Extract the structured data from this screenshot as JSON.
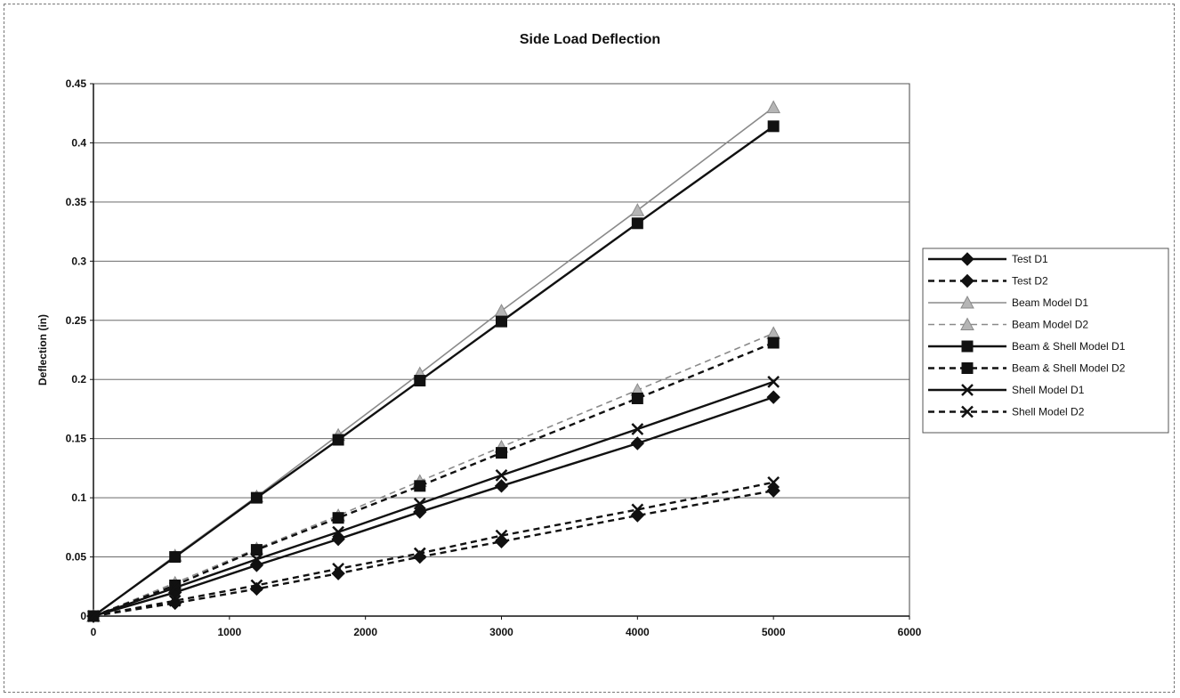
{
  "chart_data": {
    "type": "line",
    "title": "Side Load Deflection",
    "xlabel": "",
    "ylabel": "Deflection (in)",
    "xlim": [
      0,
      6000
    ],
    "ylim": [
      0,
      0.45
    ],
    "x_ticks": [
      "0",
      "1000",
      "2000",
      "3000",
      "4000",
      "5000",
      "6000"
    ],
    "y_ticks": [
      "0",
      "0.05",
      "0.1",
      "0.15",
      "0.2",
      "0.25",
      "0.3",
      "0.35",
      "0.4",
      "0.45"
    ],
    "grid": "horizontal",
    "legend_position": "right",
    "series": [
      {
        "name": "Test D1",
        "marker": "diamond",
        "dash": "solid",
        "color": "#111111",
        "points": [
          [
            0,
            0
          ],
          [
            600,
            0.02
          ],
          [
            1200,
            0.043
          ],
          [
            1800,
            0.065
          ],
          [
            2400,
            0.088
          ],
          [
            3000,
            0.11
          ],
          [
            4000,
            0.146
          ],
          [
            5000,
            0.185
          ]
        ]
      },
      {
        "name": "Test D2",
        "marker": "diamond",
        "dash": "dashed",
        "color": "#111111",
        "points": [
          [
            0,
            0
          ],
          [
            600,
            0.011
          ],
          [
            1200,
            0.023
          ],
          [
            1800,
            0.036
          ],
          [
            2400,
            0.05
          ],
          [
            3000,
            0.063
          ],
          [
            4000,
            0.085
          ],
          [
            5000,
            0.106
          ]
        ]
      },
      {
        "name": "Beam Model D1",
        "marker": "triangle",
        "dash": "solid",
        "color": "#8a8a8a",
        "points": [
          [
            0,
            0
          ],
          [
            600,
            0.051
          ],
          [
            1200,
            0.101
          ],
          [
            1800,
            0.153
          ],
          [
            2400,
            0.205
          ],
          [
            3000,
            0.258
          ],
          [
            4000,
            0.343
          ],
          [
            5000,
            0.43
          ]
        ]
      },
      {
        "name": "Beam Model D2",
        "marker": "triangle",
        "dash": "dashed",
        "color": "#8a8a8a",
        "points": [
          [
            0,
            0
          ],
          [
            600,
            0.028
          ],
          [
            1200,
            0.057
          ],
          [
            1800,
            0.085
          ],
          [
            2400,
            0.114
          ],
          [
            3000,
            0.143
          ],
          [
            4000,
            0.191
          ],
          [
            5000,
            0.239
          ]
        ]
      },
      {
        "name": "Beam & Shell Model D1",
        "marker": "square",
        "dash": "solid",
        "color": "#111111",
        "points": [
          [
            0,
            0
          ],
          [
            600,
            0.05
          ],
          [
            1200,
            0.1
          ],
          [
            1800,
            0.149
          ],
          [
            2400,
            0.199
          ],
          [
            3000,
            0.249
          ],
          [
            4000,
            0.332
          ],
          [
            5000,
            0.414
          ]
        ]
      },
      {
        "name": "Beam & Shell Model D2",
        "marker": "square",
        "dash": "dashed",
        "color": "#111111",
        "points": [
          [
            0,
            0
          ],
          [
            600,
            0.026
          ],
          [
            1200,
            0.056
          ],
          [
            1800,
            0.083
          ],
          [
            2400,
            0.11
          ],
          [
            3000,
            0.138
          ],
          [
            4000,
            0.184
          ],
          [
            5000,
            0.231
          ]
        ]
      },
      {
        "name": "Shell Model D1",
        "marker": "x",
        "dash": "solid",
        "color": "#111111",
        "points": [
          [
            0,
            0
          ],
          [
            600,
            0.024
          ],
          [
            1200,
            0.048
          ],
          [
            1800,
            0.071
          ],
          [
            2400,
            0.095
          ],
          [
            3000,
            0.119
          ],
          [
            4000,
            0.158
          ],
          [
            5000,
            0.198
          ]
        ]
      },
      {
        "name": "Shell Model D2",
        "marker": "x",
        "dash": "dashed",
        "color": "#111111",
        "points": [
          [
            0,
            0
          ],
          [
            600,
            0.013
          ],
          [
            1200,
            0.026
          ],
          [
            1800,
            0.04
          ],
          [
            2400,
            0.053
          ],
          [
            3000,
            0.068
          ],
          [
            4000,
            0.09
          ],
          [
            5000,
            0.113
          ]
        ]
      }
    ]
  }
}
